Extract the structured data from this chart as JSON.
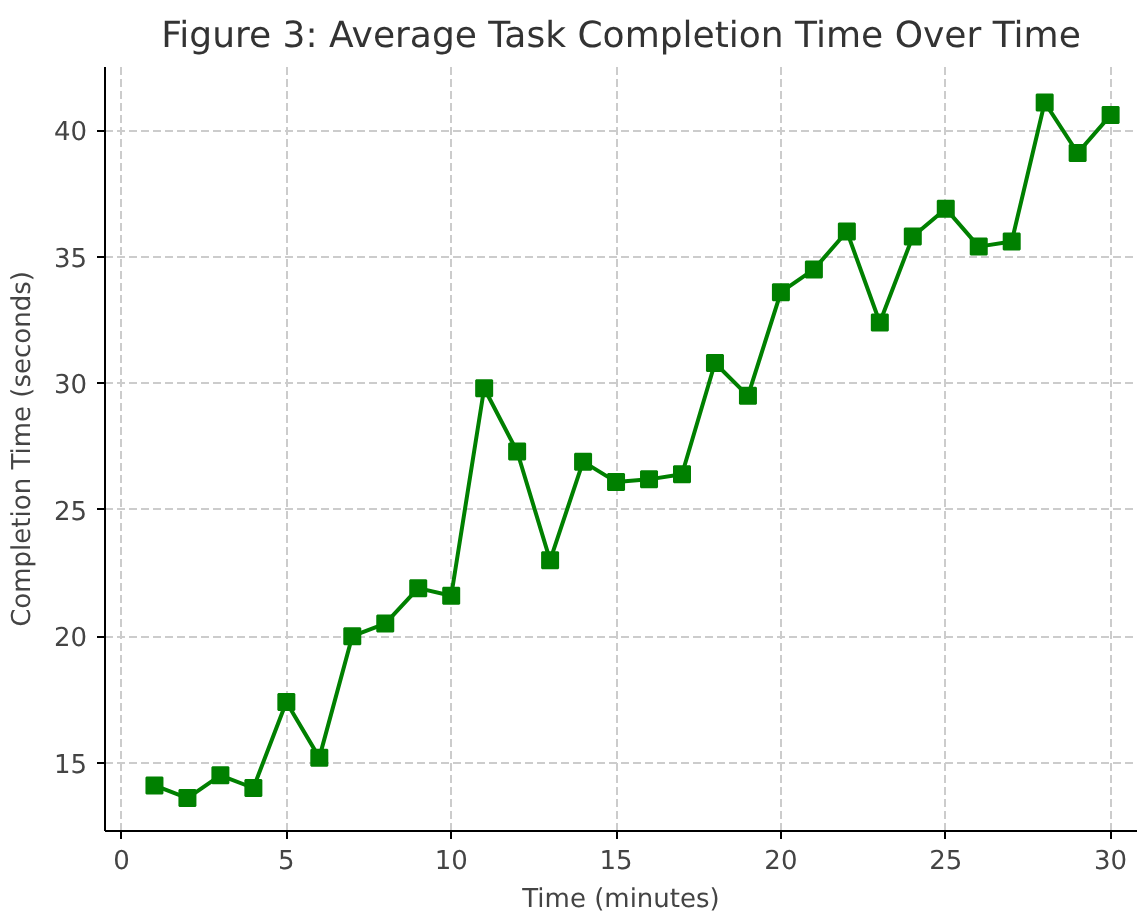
{
  "chart_data": {
    "type": "line",
    "title": "Figure 3: Average Task Completion Time Over Time",
    "xlabel": "Time (minutes)",
    "ylabel": "Completion Time (seconds)",
    "x": [
      1,
      2,
      3,
      4,
      5,
      6,
      7,
      8,
      9,
      10,
      11,
      12,
      13,
      14,
      15,
      16,
      17,
      18,
      19,
      20,
      21,
      22,
      23,
      24,
      25,
      26,
      27,
      28,
      29,
      30
    ],
    "series": [
      {
        "color": "#008000",
        "values": [
          14.1,
          13.6,
          14.5,
          14.0,
          17.4,
          15.2,
          20.0,
          20.5,
          21.9,
          21.6,
          29.8,
          27.3,
          23.0,
          26.9,
          26.1,
          26.2,
          26.4,
          30.8,
          29.5,
          33.6,
          34.5,
          36.0,
          32.4,
          35.8,
          36.9,
          35.4,
          35.6,
          41.1,
          39.1,
          40.6
        ]
      }
    ],
    "xlim": [
      -0.5,
      30.8
    ],
    "ylim": [
      12.3,
      42.5
    ],
    "xticks": [
      0,
      5,
      10,
      15,
      20,
      25,
      30
    ],
    "yticks": [
      15,
      20,
      25,
      30,
      35,
      40
    ],
    "grid": true,
    "marker": "square",
    "line_style": "solid"
  }
}
